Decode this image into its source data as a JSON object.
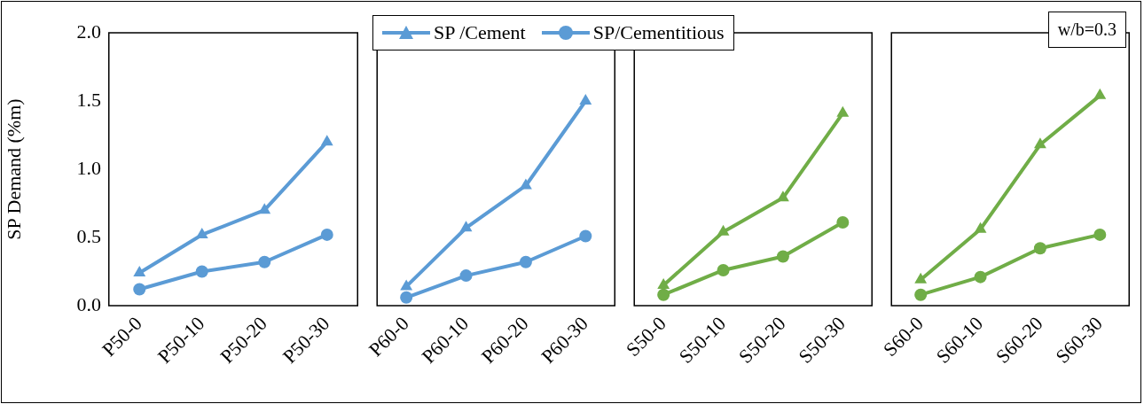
{
  "chart_data": [
    {
      "type": "line",
      "ylabel": "SP Demand (%m)",
      "categories": [
        "P50-0",
        "P50-10",
        "P50-20",
        "P50-30"
      ],
      "ylim": [
        0,
        2
      ],
      "yticks": [
        {
          "value": 0,
          "label": "0.0"
        },
        {
          "value": 0.5,
          "label": "0.5"
        },
        {
          "value": 1,
          "label": "1.0"
        },
        {
          "value": 1.5,
          "label": "1.5"
        },
        {
          "value": 2,
          "label": "2.0"
        }
      ],
      "grid": false,
      "series": [
        {
          "color": "#5b9bd5",
          "marker": "triangle",
          "values": [
            0.24,
            0.52,
            0.7,
            1.2
          ]
        },
        {
          "color": "#5b9bd5",
          "marker": "circle",
          "values": [
            0.12,
            0.25,
            0.32,
            0.52
          ]
        }
      ]
    },
    {
      "type": "line",
      "categories": [
        "P60-0",
        "P60-10",
        "P60-20",
        "P60-30"
      ],
      "ylim": [
        0,
        2
      ],
      "tick_labels": "x",
      "grid": false,
      "legend": "top",
      "series": [
        {
          "name": "SP /Cement",
          "color": "#5b9bd5",
          "marker": "triangle",
          "values": [
            0.14,
            0.57,
            0.88,
            1.5
          ]
        },
        {
          "name": "SP/Cementitious",
          "color": "#5b9bd5",
          "marker": "circle",
          "values": [
            0.06,
            0.22,
            0.32,
            0.51
          ]
        }
      ]
    },
    {
      "type": "line",
      "categories": [
        "S50-0",
        "S50-10",
        "S50-20",
        "S50-30"
      ],
      "ylim": [
        0,
        2
      ],
      "tick_labels": "x",
      "grid": false,
      "series": [
        {
          "color": "#70ad47",
          "marker": "triangle",
          "values": [
            0.15,
            0.54,
            0.79,
            1.41
          ]
        },
        {
          "color": "#70ad47",
          "marker": "circle",
          "values": [
            0.08,
            0.26,
            0.36,
            0.61
          ]
        }
      ]
    },
    {
      "type": "line",
      "categories": [
        "S60-0",
        "S60-10",
        "S60-20",
        "S60-30"
      ],
      "ylim": [
        0,
        2
      ],
      "tick_labels": "x",
      "grid": false,
      "annotations": [
        "w/b=0.3"
      ],
      "series": [
        {
          "color": "#70ad47",
          "marker": "triangle",
          "values": [
            0.19,
            0.56,
            1.18,
            1.54
          ]
        },
        {
          "color": "#70ad47",
          "marker": "circle",
          "values": [
            0.08,
            0.21,
            0.42,
            0.52
          ]
        }
      ]
    }
  ]
}
